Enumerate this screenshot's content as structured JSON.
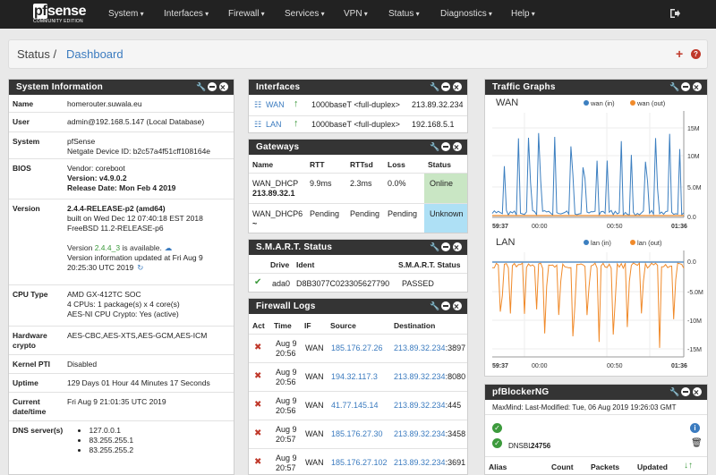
{
  "nav": {
    "brand": "pfsense",
    "brand_sub": "COMMUNITY EDITION",
    "menus": [
      "System",
      "Interfaces",
      "Firewall",
      "Services",
      "VPN",
      "Status",
      "Diagnostics",
      "Help"
    ]
  },
  "breadcrumb": {
    "section": "Status /",
    "page": "Dashboard"
  },
  "sysinfo": {
    "title": "System Information",
    "rows": [
      {
        "k": "Name",
        "v": [
          "homerouter.suwala.eu"
        ]
      },
      {
        "k": "User",
        "v": [
          "admin@192.168.5.147 (Local Database)"
        ]
      },
      {
        "k": "System",
        "v": [
          "pfSense",
          "Netgate Device ID: b2c57a4f51cff108164e"
        ]
      },
      {
        "k": "BIOS",
        "v": [
          "Vendor: coreboot",
          "Version: v4.9.0.2",
          "Release Date: Mon Feb 4 2019"
        ]
      },
      {
        "k": "Version",
        "v": [
          "2.4.4-RELEASE-p2 (amd64)",
          "built on Wed Dec 12 07:40:18 EST 2018",
          "FreeBSD 11.2-RELEASE-p6",
          "",
          "Version 2.4.4_3 is available.",
          "Version information updated at Fri Aug 9",
          "20:25:30 UTC 2019"
        ]
      },
      {
        "k": "CPU Type",
        "v": [
          "AMD GX-412TC SOC",
          "4 CPUs: 1 package(s) x 4 core(s)",
          "AES-NI CPU Crypto: Yes (active)"
        ]
      },
      {
        "k": "Hardware crypto",
        "v": [
          "AES-CBC,AES-XTS,AES-GCM,AES-ICM"
        ]
      },
      {
        "k": "Kernel PTI",
        "v": [
          "Disabled"
        ]
      },
      {
        "k": "Uptime",
        "v": [
          "129 Days 01 Hour 44 Minutes 17 Seconds"
        ]
      },
      {
        "k": "Current date/time",
        "v": [
          "Fri Aug 9 21:01:35 UTC 2019"
        ]
      },
      {
        "k": "DNS server(s)",
        "v": [
          "127.0.0.1",
          "83.255.255.1",
          "83.255.255.2"
        ]
      }
    ]
  },
  "interfaces": {
    "title": "Interfaces",
    "rows": [
      {
        "name": "WAN",
        "speed": "1000baseT <full-duplex>",
        "ip": "213.89.32.234"
      },
      {
        "name": "LAN",
        "speed": "1000baseT <full-duplex>",
        "ip": "192.168.5.1"
      }
    ]
  },
  "gateways": {
    "title": "Gateways",
    "headers": [
      "Name",
      "RTT",
      "RTTsd",
      "Loss",
      "Status"
    ],
    "rows": [
      {
        "name": "WAN_DHCP",
        "ip": "213.89.32.1",
        "rtt": "9.9ms",
        "rttsd": "2.3ms",
        "loss": "0.0%",
        "status": "Online",
        "color": "#c9e6c4"
      },
      {
        "name": "WAN_DHCP6",
        "ip": "~",
        "rtt": "Pending",
        "rttsd": "Pending",
        "loss": "Pending",
        "status": "Unknown",
        "color": "#aee0f5"
      }
    ]
  },
  "smart": {
    "title": "S.M.A.R.T. Status",
    "headers": [
      "Drive",
      "Ident",
      "S.M.A.R.T. Status"
    ],
    "row": {
      "drive": "ada0",
      "ident": "D8B3077C023305627790",
      "status": "PASSED"
    }
  },
  "fwlogs": {
    "title": "Firewall Logs",
    "headers": [
      "Act",
      "Time",
      "IF",
      "Source",
      "Destination"
    ],
    "rows": [
      {
        "date": "Aug 9",
        "time": "20:56",
        "if": "WAN",
        "src": "185.176.27.26",
        "dst": "213.89.32.234",
        "port": ":3897"
      },
      {
        "date": "Aug 9",
        "time": "20:56",
        "if": "WAN",
        "src": "194.32.117.3",
        "dst": "213.89.32.234",
        "port": ":8080"
      },
      {
        "date": "Aug 9",
        "time": "20:56",
        "if": "WAN",
        "src": "41.77.145.14",
        "dst": "213.89.32.234",
        "port": ":445"
      },
      {
        "date": "Aug 9",
        "time": "20:57",
        "if": "WAN",
        "src": "185.176.27.30",
        "dst": "213.89.32.234",
        "port": ":3458"
      },
      {
        "date": "Aug 9",
        "time": "20:57",
        "if": "WAN",
        "src": "185.176.27.102",
        "dst": "213.89.32.234",
        "port": ":3691"
      }
    ]
  },
  "traffic": {
    "title": "Traffic Graphs",
    "charts": [
      {
        "name": "WAN",
        "legend": [
          "wan (in)",
          "wan (out)"
        ],
        "colors": [
          "#3c7fc0",
          "#f08a2a"
        ],
        "yticks": [
          "15M",
          "10M",
          "5.0M",
          "0.0"
        ],
        "xticks": [
          "59:37",
          "00:00",
          "00:50",
          "01:36"
        ]
      },
      {
        "name": "LAN",
        "legend": [
          "lan (in)",
          "lan (out)"
        ],
        "colors": [
          "#3c7fc0",
          "#f08a2a"
        ],
        "yticks": [
          "0.0",
          "-5.0M",
          "-10M",
          "-15M"
        ],
        "xticks": [
          "59:37",
          "00:00",
          "00:50",
          "01:36"
        ]
      }
    ]
  },
  "pfblocker": {
    "title": "pfBlockerNG",
    "maxmind": "MaxMind: Last-Modified: Tue, 06 Aug 2019 19:26:03 GMT",
    "dnsbl_label": "DNSBL:",
    "dnsbl_count": "24756",
    "headers": [
      "Alias",
      "Count",
      "Packets",
      "Updated"
    ]
  }
}
